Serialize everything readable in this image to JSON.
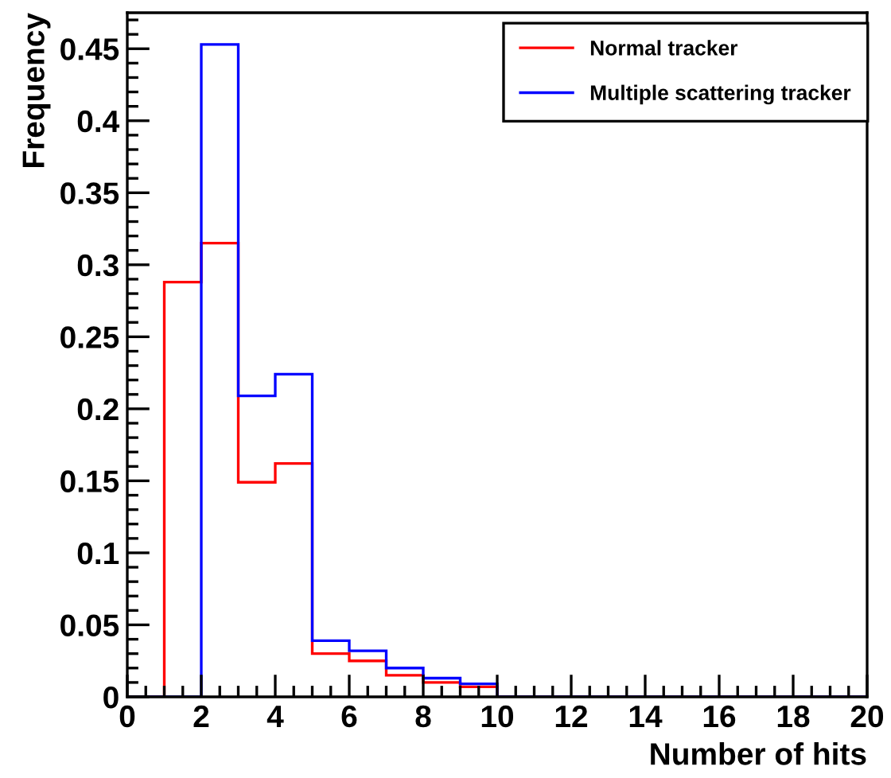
{
  "chart_data": {
    "type": "histogram",
    "xlabel": "Number of hits",
    "ylabel": "Frequency",
    "bins": [
      0,
      1,
      2,
      3,
      4,
      5,
      6,
      7,
      8,
      9,
      10,
      11,
      12,
      13,
      14,
      15,
      16,
      17,
      18,
      19,
      20
    ],
    "series": [
      {
        "name": "Normal tracker",
        "color": "#ff0000",
        "values": [
          0,
          0.288,
          0.315,
          0.149,
          0.162,
          0.03,
          0.025,
          0.015,
          0.01,
          0.007,
          0,
          0,
          0,
          0,
          0,
          0,
          0,
          0,
          0,
          0
        ]
      },
      {
        "name": "Multiple scattering tracker",
        "color": "#0000ff",
        "values": [
          0,
          0,
          0.453,
          0.209,
          0.224,
          0.039,
          0.032,
          0.02,
          0.013,
          0.009,
          0,
          0,
          0,
          0,
          0,
          0,
          0,
          0,
          0,
          0
        ]
      }
    ],
    "xlim": [
      0,
      20
    ],
    "ylim": [
      0,
      0.475
    ],
    "xticks": [
      0,
      2,
      4,
      6,
      8,
      10,
      12,
      14,
      16,
      18,
      20
    ],
    "yticks": [
      0,
      0.05,
      0.1,
      0.15,
      0.2,
      0.25,
      0.3,
      0.35,
      0.4,
      0.45
    ],
    "grid": false,
    "legend": "top right"
  }
}
